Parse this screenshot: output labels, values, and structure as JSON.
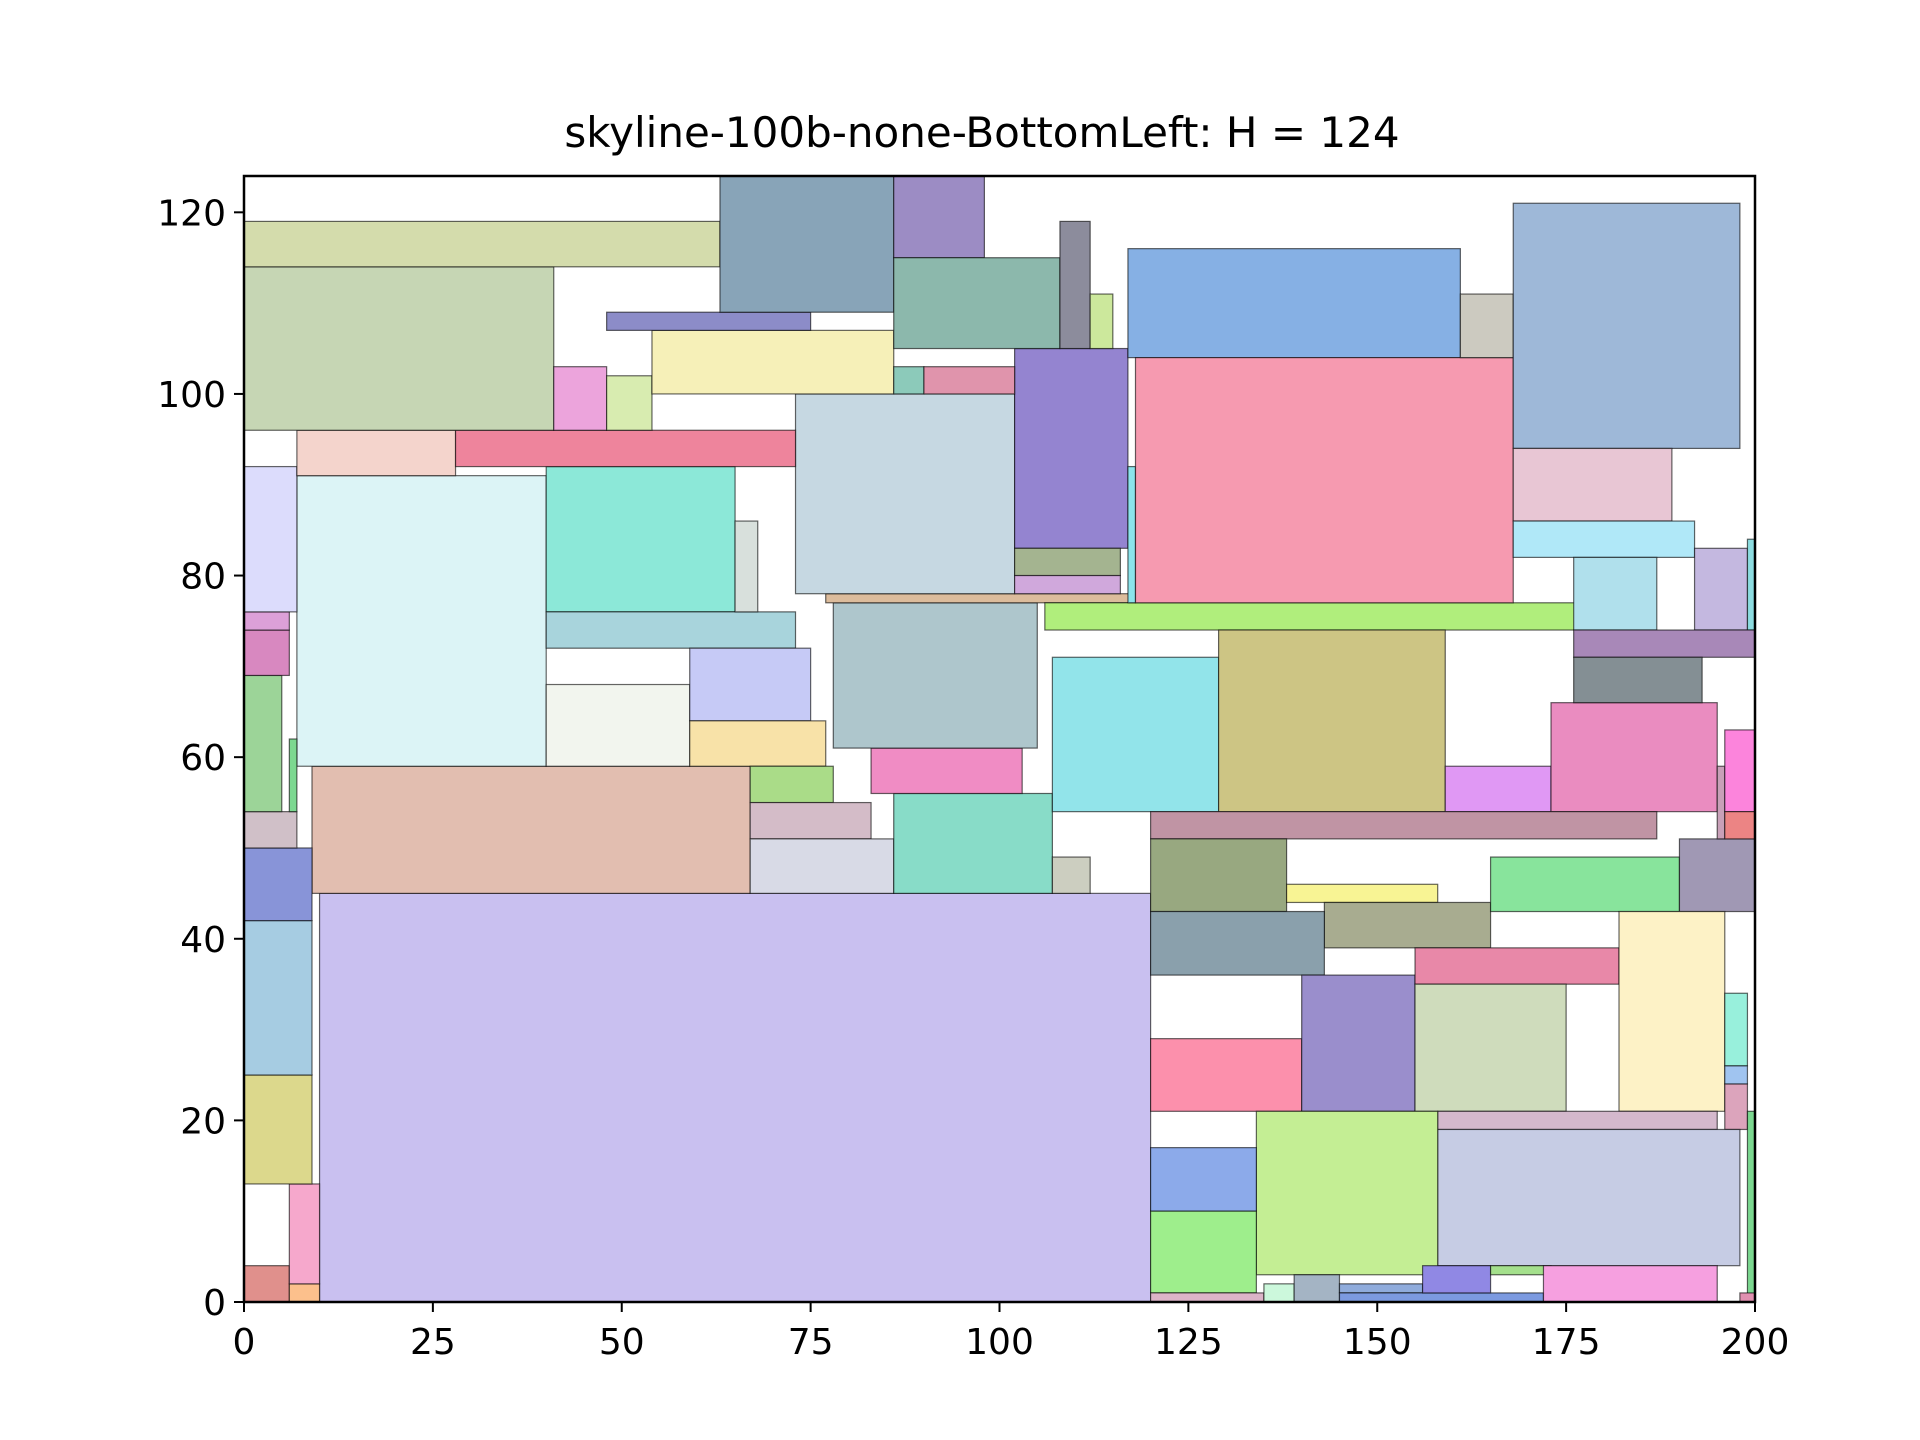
{
  "chart_data": {
    "type": "packing",
    "title": "skyline-100b-none-BottomLeft: H = 124",
    "xlim": [
      0,
      200
    ],
    "ylim": [
      0,
      124
    ],
    "x_ticks": [
      0,
      25,
      50,
      75,
      100,
      125,
      150,
      175,
      200
    ],
    "y_ticks": [
      0,
      20,
      40,
      60,
      80,
      100,
      120
    ],
    "grid": false,
    "rects": [
      {
        "x": 10,
        "y": 0,
        "w": 110,
        "h": 45,
        "color": "#c9c0f0"
      },
      {
        "x": 9,
        "y": 45,
        "w": 58,
        "h": 14,
        "color": "#e2beb0"
      },
      {
        "x": 7,
        "y": 59,
        "w": 33,
        "h": 32,
        "color": "#dcf4f6"
      },
      {
        "x": 40,
        "y": 76,
        "w": 25,
        "h": 16,
        "color": "#8ce8d8"
      },
      {
        "x": 40,
        "y": 72,
        "w": 33,
        "h": 4,
        "color": "#a8d4dc"
      },
      {
        "x": 40,
        "y": 59,
        "w": 19,
        "h": 9,
        "color": "#f2f5ee"
      },
      {
        "x": 59,
        "y": 64,
        "w": 16,
        "h": 8,
        "color": "#c6caf6"
      },
      {
        "x": 59,
        "y": 59,
        "w": 18,
        "h": 5,
        "color": "#f8e2a8"
      },
      {
        "x": 65,
        "y": 76,
        "w": 3,
        "h": 10,
        "color": "#d8e0dc"
      },
      {
        "x": 67,
        "y": 55,
        "w": 11,
        "h": 4,
        "color": "#aadc88"
      },
      {
        "x": 67,
        "y": 51,
        "w": 16,
        "h": 4,
        "color": "#d4bcc8"
      },
      {
        "x": 67,
        "y": 45,
        "w": 19,
        "h": 6,
        "color": "#d8dae6"
      },
      {
        "x": 86,
        "y": 45,
        "w": 21,
        "h": 11,
        "color": "#88dcc8"
      },
      {
        "x": 83,
        "y": 56,
        "w": 20,
        "h": 5,
        "color": "#f08cc4"
      },
      {
        "x": 78,
        "y": 61,
        "w": 27,
        "h": 16,
        "color": "#aec6cc"
      },
      {
        "x": 77,
        "y": 77,
        "w": 41,
        "h": 1,
        "color": "#dcbc9c"
      },
      {
        "x": 73,
        "y": 78,
        "w": 29,
        "h": 22,
        "color": "#c6d8e2"
      },
      {
        "x": 102,
        "y": 83,
        "w": 15,
        "h": 22,
        "color": "#9484d0"
      },
      {
        "x": 102,
        "y": 80,
        "w": 14,
        "h": 3,
        "color": "#a4b490"
      },
      {
        "x": 102,
        "y": 78,
        "w": 14,
        "h": 2,
        "color": "#d0a8dc"
      },
      {
        "x": 106,
        "y": 74,
        "w": 71,
        "h": 3,
        "color": "#b0ee7c"
      },
      {
        "x": 107,
        "y": 54,
        "w": 22,
        "h": 17,
        "color": "#92e4ea"
      },
      {
        "x": 107,
        "y": 45,
        "w": 5,
        "h": 4,
        "color": "#cccec0"
      },
      {
        "x": 129,
        "y": 54,
        "w": 30,
        "h": 20,
        "color": "#cdc584"
      },
      {
        "x": 159,
        "y": 54,
        "w": 14,
        "h": 5,
        "color": "#e098f4"
      },
      {
        "x": 173,
        "y": 54,
        "w": 22,
        "h": 12,
        "color": "#ea8cc0"
      },
      {
        "x": 120,
        "y": 51,
        "w": 67,
        "h": 3,
        "color": "#c094a4"
      },
      {
        "x": 120,
        "y": 43,
        "w": 18,
        "h": 8,
        "color": "#98a880"
      },
      {
        "x": 138,
        "y": 44,
        "w": 20,
        "h": 2,
        "color": "#f8f494"
      },
      {
        "x": 143,
        "y": 39,
        "w": 22,
        "h": 5,
        "color": "#a8ac90"
      },
      {
        "x": 165,
        "y": 43,
        "w": 25,
        "h": 6,
        "color": "#88e49c"
      },
      {
        "x": 190,
        "y": 43,
        "w": 10,
        "h": 8,
        "color": "#a098b4"
      },
      {
        "x": 120,
        "y": 36,
        "w": 23,
        "h": 7,
        "color": "#8aa0ac"
      },
      {
        "x": 120,
        "y": 21,
        "w": 20,
        "h": 8,
        "color": "#fc90ac"
      },
      {
        "x": 140,
        "y": 21,
        "w": 15,
        "h": 15,
        "color": "#9a8ecc"
      },
      {
        "x": 155,
        "y": 35,
        "w": 27,
        "h": 4,
        "color": "#e888a8"
      },
      {
        "x": 155,
        "y": 21,
        "w": 20,
        "h": 14,
        "color": "#cfdcbc"
      },
      {
        "x": 182,
        "y": 21,
        "w": 14,
        "h": 22,
        "color": "#fdf2c6"
      },
      {
        "x": 196,
        "y": 26,
        "w": 3,
        "h": 8,
        "color": "#98f0dc"
      },
      {
        "x": 196,
        "y": 24,
        "w": 3,
        "h": 2,
        "color": "#a0c4f0"
      },
      {
        "x": 196,
        "y": 19,
        "w": 3,
        "h": 5,
        "color": "#dca4bc"
      },
      {
        "x": 199,
        "y": 0,
        "w": 1,
        "h": 21,
        "color": "#7cd890"
      },
      {
        "x": 158,
        "y": 19,
        "w": 37,
        "h": 2,
        "color": "#d4b8cc"
      },
      {
        "x": 158,
        "y": 4,
        "w": 40,
        "h": 15,
        "color": "#c6cce4"
      },
      {
        "x": 134,
        "y": 3,
        "w": 24,
        "h": 18,
        "color": "#c4ee94"
      },
      {
        "x": 120,
        "y": 10,
        "w": 14,
        "h": 7,
        "color": "#8caaea"
      },
      {
        "x": 120,
        "y": 1,
        "w": 14,
        "h": 9,
        "color": "#9eee8c"
      },
      {
        "x": 120,
        "y": 0,
        "w": 15,
        "h": 1,
        "color": "#dcb4c8"
      },
      {
        "x": 135,
        "y": 0,
        "w": 4,
        "h": 2,
        "color": "#ccf8dc"
      },
      {
        "x": 139,
        "y": 0,
        "w": 6,
        "h": 3,
        "color": "#a4b4c4"
      },
      {
        "x": 145,
        "y": 1,
        "w": 11,
        "h": 1,
        "color": "#90acdc"
      },
      {
        "x": 145,
        "y": 0,
        "w": 27,
        "h": 1,
        "color": "#7c9ae0"
      },
      {
        "x": 156,
        "y": 1,
        "w": 9,
        "h": 3,
        "color": "#9088e4"
      },
      {
        "x": 165,
        "y": 3,
        "w": 8,
        "h": 1,
        "color": "#a4e08c"
      },
      {
        "x": 172,
        "y": 0,
        "w": 23,
        "h": 4,
        "color": "#f6a0e0"
      },
      {
        "x": 198,
        "y": 0,
        "w": 2,
        "h": 1,
        "color": "#e090b0"
      },
      {
        "x": 0,
        "y": 0,
        "w": 6,
        "h": 4,
        "color": "#e0908c"
      },
      {
        "x": 6,
        "y": 0,
        "w": 4,
        "h": 2,
        "color": "#fcc08c"
      },
      {
        "x": 6,
        "y": 2,
        "w": 4,
        "h": 11,
        "color": "#f6a8cc"
      },
      {
        "x": 0,
        "y": 13,
        "w": 9,
        "h": 12,
        "color": "#dcd88c"
      },
      {
        "x": 0,
        "y": 25,
        "w": 9,
        "h": 17,
        "color": "#a6cce2"
      },
      {
        "x": 0,
        "y": 42,
        "w": 9,
        "h": 8,
        "color": "#8894d8"
      },
      {
        "x": 0,
        "y": 50,
        "w": 7,
        "h": 4,
        "color": "#d0c0c8"
      },
      {
        "x": 0,
        "y": 54,
        "w": 5,
        "h": 15,
        "color": "#9cd498"
      },
      {
        "x": 6,
        "y": 54,
        "w": 1,
        "h": 8,
        "color": "#7cd890"
      },
      {
        "x": 0,
        "y": 69,
        "w": 6,
        "h": 5,
        "color": "#d888c0"
      },
      {
        "x": 0,
        "y": 74,
        "w": 6,
        "h": 2,
        "color": "#dca0d8"
      },
      {
        "x": 0,
        "y": 76,
        "w": 7,
        "h": 16,
        "color": "#dcdcfc"
      },
      {
        "x": 7,
        "y": 91,
        "w": 21,
        "h": 5,
        "color": "#f4d4cc"
      },
      {
        "x": 28,
        "y": 92,
        "w": 45,
        "h": 4,
        "color": "#ee849c"
      },
      {
        "x": 0,
        "y": 96,
        "w": 41,
        "h": 18,
        "color": "#c6d6b4"
      },
      {
        "x": 41,
        "y": 96,
        "w": 7,
        "h": 7,
        "color": "#eca4dc"
      },
      {
        "x": 48,
        "y": 96,
        "w": 6,
        "h": 6,
        "color": "#d8ecb0"
      },
      {
        "x": 54,
        "y": 100,
        "w": 32,
        "h": 7,
        "color": "#f6f0b8"
      },
      {
        "x": 48,
        "y": 107,
        "w": 27,
        "h": 2,
        "color": "#8c8cc8"
      },
      {
        "x": 0,
        "y": 114,
        "w": 63,
        "h": 5,
        "color": "#d4dcac"
      },
      {
        "x": 63,
        "y": 109,
        "w": 23,
        "h": 15,
        "color": "#88a4b8"
      },
      {
        "x": 86,
        "y": 115,
        "w": 12,
        "h": 9,
        "color": "#9c8cc4"
      },
      {
        "x": 86,
        "y": 105,
        "w": 22,
        "h": 10,
        "color": "#8cb8ac"
      },
      {
        "x": 86,
        "y": 100,
        "w": 4,
        "h": 3,
        "color": "#8ccaba"
      },
      {
        "x": 90,
        "y": 100,
        "w": 12,
        "h": 3,
        "color": "#e094ac"
      },
      {
        "x": 108,
        "y": 105,
        "w": 4,
        "h": 14,
        "color": "#8c8c9c"
      },
      {
        "x": 112,
        "y": 105,
        "w": 3,
        "h": 6,
        "color": "#cce89c"
      },
      {
        "x": 117,
        "y": 104,
        "w": 44,
        "h": 12,
        "color": "#86b0e4"
      },
      {
        "x": 117,
        "y": 77,
        "w": 1,
        "h": 15,
        "color": "#8ce4ec"
      },
      {
        "x": 118,
        "y": 77,
        "w": 50,
        "h": 27,
        "color": "#f69ab0"
      },
      {
        "x": 161,
        "y": 104,
        "w": 7,
        "h": 7,
        "color": "#cccac0"
      },
      {
        "x": 168,
        "y": 94,
        "w": 30,
        "h": 27,
        "color": "#9eb8d8"
      },
      {
        "x": 168,
        "y": 86,
        "w": 21,
        "h": 8,
        "color": "#e8c6d4"
      },
      {
        "x": 168,
        "y": 82,
        "w": 24,
        "h": 4,
        "color": "#b0e8f8"
      },
      {
        "x": 176,
        "y": 74,
        "w": 11,
        "h": 8,
        "color": "#b0e0ec"
      },
      {
        "x": 192,
        "y": 74,
        "w": 7,
        "h": 9,
        "color": "#c4b8e0"
      },
      {
        "x": 199,
        "y": 74,
        "w": 1,
        "h": 10,
        "color": "#8cdce0"
      },
      {
        "x": 176,
        "y": 71,
        "w": 24,
        "h": 3,
        "color": "#a888b8"
      },
      {
        "x": 176,
        "y": 66,
        "w": 17,
        "h": 5,
        "color": "#848f94"
      },
      {
        "x": 195,
        "y": 51,
        "w": 1,
        "h": 8,
        "color": "#c8a0b8"
      },
      {
        "x": 196,
        "y": 54,
        "w": 4,
        "h": 9,
        "color": "#fc84dc"
      },
      {
        "x": 196,
        "y": 51,
        "w": 4,
        "h": 3,
        "color": "#ec8484"
      }
    ]
  }
}
